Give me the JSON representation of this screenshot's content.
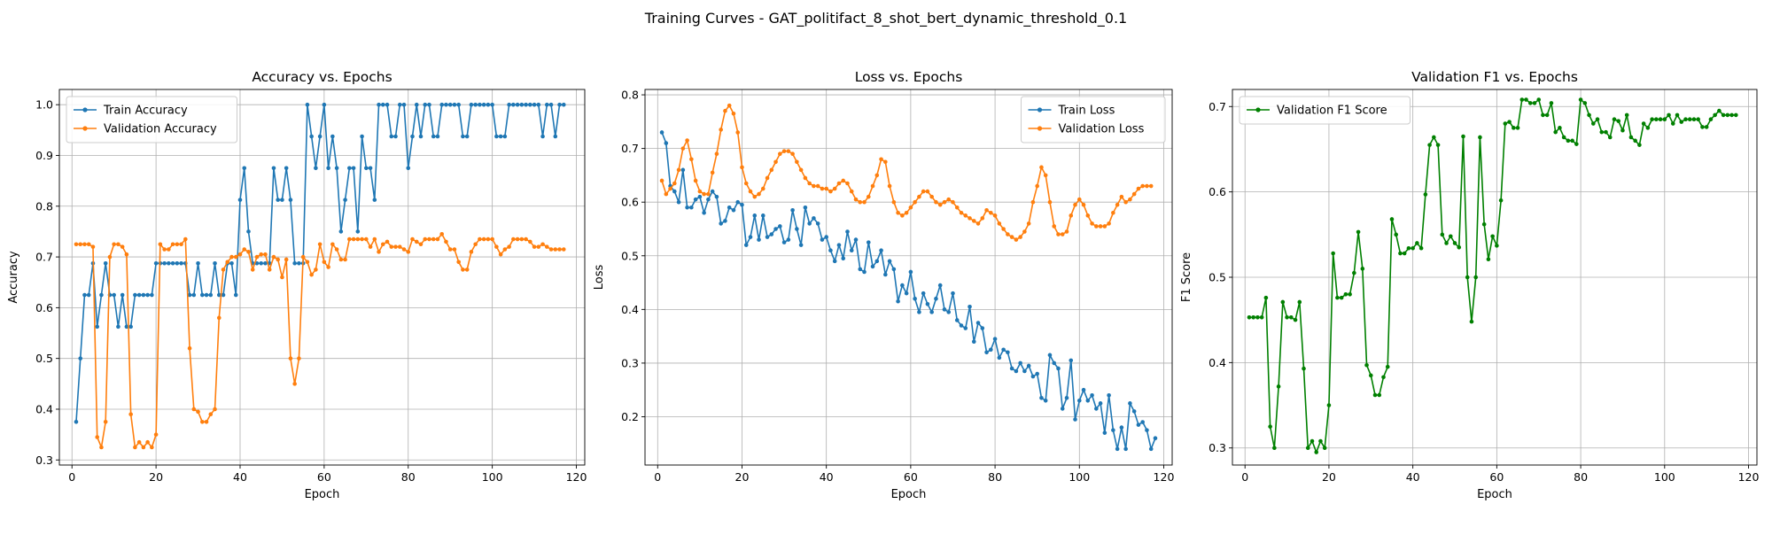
{
  "figure": {
    "suptitle": "Training Curves - GAT_politifact_8_shot_bert_dynamic_threshold_0.1"
  },
  "chart_data": [
    {
      "type": "line",
      "title": "Accuracy vs. Epochs",
      "xlabel": "Epoch",
      "ylabel": "Accuracy",
      "xlim": [
        -3,
        122
      ],
      "ylim": [
        0.29,
        1.03
      ],
      "xticks": [
        0,
        20,
        40,
        60,
        80,
        100,
        120
      ],
      "xtick_labels": [
        "0",
        "20",
        "40",
        "60",
        "80",
        "100",
        "120"
      ],
      "yticks": [
        0.3,
        0.4,
        0.5,
        0.6,
        0.7,
        0.8,
        0.9,
        1.0
      ],
      "ytick_labels": [
        "0.3",
        "0.4",
        "0.5",
        "0.6",
        "0.7",
        "0.8",
        "0.9",
        "1.0"
      ],
      "grid": true,
      "legend_position": "upper left",
      "x_start": 1,
      "series": [
        {
          "name": "Train Accuracy",
          "color": "#1f77b4",
          "values": [
            0.375,
            0.5,
            0.625,
            0.625,
            0.6875,
            0.5625,
            0.625,
            0.6875,
            0.625,
            0.625,
            0.5625,
            0.625,
            0.5625,
            0.5625,
            0.625,
            0.625,
            0.625,
            0.625,
            0.625,
            0.6875,
            0.6875,
            0.6875,
            0.6875,
            0.6875,
            0.6875,
            0.6875,
            0.6875,
            0.625,
            0.625,
            0.6875,
            0.625,
            0.625,
            0.625,
            0.6875,
            0.625,
            0.625,
            0.6875,
            0.6875,
            0.625,
            0.8125,
            0.875,
            0.75,
            0.6875,
            0.6875,
            0.6875,
            0.6875,
            0.6875,
            0.875,
            0.8125,
            0.8125,
            0.875,
            0.8125,
            0.6875,
            0.6875,
            0.6875,
            1.0,
            0.9375,
            0.875,
            0.9375,
            1.0,
            0.875,
            0.9375,
            0.875,
            0.75,
            0.8125,
            0.875,
            0.875,
            0.75,
            0.9375,
            0.875,
            0.875,
            0.8125,
            1.0,
            1.0,
            1.0,
            0.9375,
            0.9375,
            1.0,
            1.0,
            0.875,
            0.9375,
            1.0,
            0.9375,
            1.0,
            1.0,
            0.9375,
            0.9375,
            1.0,
            1.0,
            1.0,
            1.0,
            1.0,
            0.9375,
            0.9375,
            1.0,
            1.0,
            1.0,
            1.0,
            1.0,
            1.0,
            0.9375,
            0.9375,
            0.9375,
            1.0,
            1.0,
            1.0,
            1.0,
            1.0,
            1.0,
            1.0,
            1.0,
            0.9375,
            1.0,
            1.0,
            0.9375,
            1.0,
            1.0
          ]
        },
        {
          "name": "Validation Accuracy",
          "color": "#ff7f0e",
          "values": [
            0.725,
            0.725,
            0.725,
            0.725,
            0.72,
            0.345,
            0.325,
            0.375,
            0.7,
            0.725,
            0.725,
            0.72,
            0.705,
            0.39,
            0.325,
            0.335,
            0.325,
            0.335,
            0.325,
            0.35,
            0.725,
            0.715,
            0.715,
            0.725,
            0.725,
            0.725,
            0.735,
            0.52,
            0.4,
            0.395,
            0.375,
            0.375,
            0.39,
            0.4,
            0.58,
            0.675,
            0.69,
            0.7,
            0.7,
            0.705,
            0.715,
            0.71,
            0.675,
            0.7,
            0.705,
            0.705,
            0.675,
            0.7,
            0.695,
            0.66,
            0.695,
            0.5,
            0.45,
            0.5,
            0.7,
            0.69,
            0.665,
            0.675,
            0.725,
            0.69,
            0.68,
            0.725,
            0.715,
            0.695,
            0.695,
            0.735,
            0.735,
            0.735,
            0.735,
            0.735,
            0.72,
            0.735,
            0.71,
            0.725,
            0.73,
            0.72,
            0.72,
            0.72,
            0.715,
            0.71,
            0.735,
            0.73,
            0.725,
            0.735,
            0.735,
            0.735,
            0.735,
            0.745,
            0.73,
            0.715,
            0.715,
            0.69,
            0.675,
            0.675,
            0.71,
            0.725,
            0.735,
            0.735,
            0.735,
            0.735,
            0.72,
            0.705,
            0.715,
            0.72,
            0.735,
            0.735,
            0.735,
            0.735,
            0.73,
            0.72,
            0.72,
            0.725,
            0.72,
            0.715,
            0.715,
            0.715,
            0.715
          ]
        }
      ]
    },
    {
      "type": "line",
      "title": "Loss vs. Epochs",
      "xlabel": "Epoch",
      "ylabel": "Loss",
      "xlim": [
        -3,
        122
      ],
      "ylim": [
        0.11,
        0.81
      ],
      "xticks": [
        0,
        20,
        40,
        60,
        80,
        100,
        120
      ],
      "xtick_labels": [
        "0",
        "20",
        "40",
        "60",
        "80",
        "100",
        "120"
      ],
      "yticks": [
        0.2,
        0.3,
        0.4,
        0.5,
        0.6,
        0.7,
        0.8
      ],
      "ytick_labels": [
        "0.2",
        "0.3",
        "0.4",
        "0.5",
        "0.6",
        "0.7",
        "0.8"
      ],
      "grid": true,
      "legend_position": "upper right",
      "x_start": 1,
      "series": [
        {
          "name": "Train Loss",
          "color": "#1f77b4",
          "values": [
            0.73,
            0.71,
            0.63,
            0.62,
            0.6,
            0.66,
            0.59,
            0.59,
            0.605,
            0.61,
            0.58,
            0.605,
            0.62,
            0.61,
            0.56,
            0.565,
            0.59,
            0.585,
            0.6,
            0.595,
            0.52,
            0.535,
            0.575,
            0.53,
            0.575,
            0.535,
            0.54,
            0.55,
            0.555,
            0.525,
            0.53,
            0.585,
            0.55,
            0.52,
            0.59,
            0.56,
            0.57,
            0.56,
            0.53,
            0.535,
            0.51,
            0.49,
            0.52,
            0.495,
            0.545,
            0.51,
            0.53,
            0.475,
            0.47,
            0.525,
            0.48,
            0.49,
            0.51,
            0.465,
            0.49,
            0.475,
            0.415,
            0.445,
            0.43,
            0.47,
            0.42,
            0.395,
            0.43,
            0.41,
            0.395,
            0.42,
            0.445,
            0.4,
            0.395,
            0.43,
            0.38,
            0.37,
            0.365,
            0.405,
            0.34,
            0.375,
            0.365,
            0.32,
            0.325,
            0.345,
            0.31,
            0.325,
            0.32,
            0.29,
            0.285,
            0.3,
            0.285,
            0.295,
            0.275,
            0.28,
            0.235,
            0.23,
            0.315,
            0.3,
            0.29,
            0.215,
            0.235,
            0.305,
            0.195,
            0.23,
            0.25,
            0.23,
            0.24,
            0.215,
            0.225,
            0.17,
            0.24,
            0.175,
            0.14,
            0.18,
            0.14,
            0.225,
            0.21,
            0.185,
            0.19,
            0.175,
            0.14,
            0.16
          ]
        },
        {
          "name": "Validation Loss",
          "color": "#ff7f0e",
          "values": [
            0.64,
            0.615,
            0.625,
            0.635,
            0.66,
            0.7,
            0.715,
            0.68,
            0.64,
            0.62,
            0.615,
            0.615,
            0.655,
            0.69,
            0.735,
            0.77,
            0.78,
            0.765,
            0.73,
            0.665,
            0.635,
            0.62,
            0.61,
            0.615,
            0.625,
            0.645,
            0.66,
            0.675,
            0.69,
            0.695,
            0.695,
            0.69,
            0.675,
            0.66,
            0.645,
            0.635,
            0.63,
            0.63,
            0.625,
            0.625,
            0.62,
            0.625,
            0.635,
            0.64,
            0.635,
            0.62,
            0.605,
            0.6,
            0.6,
            0.61,
            0.63,
            0.65,
            0.68,
            0.675,
            0.63,
            0.6,
            0.58,
            0.575,
            0.58,
            0.59,
            0.6,
            0.61,
            0.62,
            0.62,
            0.61,
            0.6,
            0.595,
            0.6,
            0.605,
            0.6,
            0.59,
            0.58,
            0.575,
            0.57,
            0.565,
            0.56,
            0.57,
            0.585,
            0.58,
            0.575,
            0.56,
            0.55,
            0.54,
            0.535,
            0.53,
            0.535,
            0.545,
            0.56,
            0.6,
            0.63,
            0.665,
            0.65,
            0.6,
            0.555,
            0.54,
            0.54,
            0.545,
            0.575,
            0.595,
            0.605,
            0.595,
            0.575,
            0.56,
            0.555,
            0.555,
            0.555,
            0.56,
            0.58,
            0.595,
            0.61,
            0.6,
            0.605,
            0.615,
            0.625,
            0.63,
            0.63,
            0.63
          ]
        }
      ]
    },
    {
      "type": "line",
      "title": "Validation F1 vs. Epochs",
      "xlabel": "Epoch",
      "ylabel": "F1 Score",
      "xlim": [
        -3,
        122
      ],
      "ylim": [
        0.28,
        0.72
      ],
      "xticks": [
        0,
        20,
        40,
        60,
        80,
        100,
        120
      ],
      "xtick_labels": [
        "0",
        "20",
        "40",
        "60",
        "80",
        "100",
        "120"
      ],
      "yticks": [
        0.3,
        0.4,
        0.5,
        0.6,
        0.7
      ],
      "ytick_labels": [
        "0.3",
        "0.4",
        "0.5",
        "0.6",
        "0.7"
      ],
      "grid": true,
      "legend_position": "upper left",
      "x_start": 1,
      "series": [
        {
          "name": "Validation F1 Score",
          "color": "#008000",
          "values": [
            0.453,
            0.453,
            0.453,
            0.453,
            0.476,
            0.325,
            0.3,
            0.372,
            0.471,
            0.453,
            0.453,
            0.45,
            0.471,
            0.393,
            0.3,
            0.308,
            0.295,
            0.308,
            0.3,
            0.35,
            0.528,
            0.476,
            0.476,
            0.48,
            0.48,
            0.505,
            0.553,
            0.51,
            0.397,
            0.385,
            0.362,
            0.362,
            0.383,
            0.395,
            0.568,
            0.55,
            0.528,
            0.528,
            0.534,
            0.534,
            0.54,
            0.534,
            0.597,
            0.655,
            0.664,
            0.655,
            0.55,
            0.54,
            0.548,
            0.54,
            0.535,
            0.665,
            0.5,
            0.448,
            0.5,
            0.664,
            0.562,
            0.521,
            0.548,
            0.537,
            0.59,
            0.68,
            0.682,
            0.675,
            0.675,
            0.708,
            0.708,
            0.704,
            0.704,
            0.708,
            0.69,
            0.69,
            0.704,
            0.67,
            0.675,
            0.664,
            0.66,
            0.66,
            0.656,
            0.708,
            0.704,
            0.69,
            0.68,
            0.685,
            0.67,
            0.67,
            0.664,
            0.685,
            0.683,
            0.672,
            0.69,
            0.664,
            0.66,
            0.655,
            0.68,
            0.675,
            0.685,
            0.685,
            0.685,
            0.685,
            0.69,
            0.68,
            0.69,
            0.682,
            0.685,
            0.685,
            0.685,
            0.685,
            0.676,
            0.676,
            0.685,
            0.69,
            0.695,
            0.69,
            0.69,
            0.69,
            0.69
          ]
        }
      ]
    }
  ]
}
